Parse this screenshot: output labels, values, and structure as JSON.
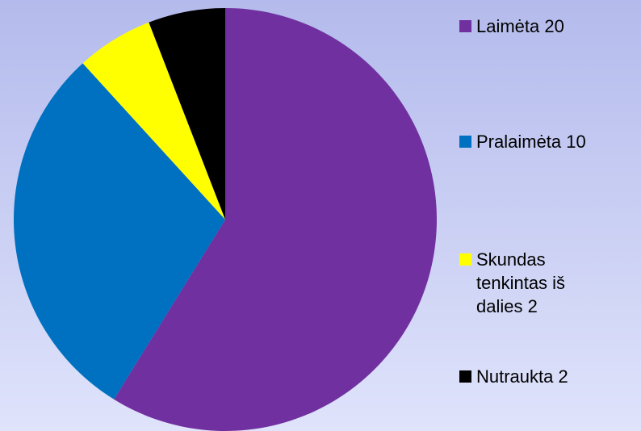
{
  "chart_data": {
    "type": "pie",
    "categories": [
      "Laimėta 20",
      "Pralaimėta 10",
      "Skundas tenkintas iš dalies 2",
      "Nutraukta 2"
    ],
    "values": [
      20,
      10,
      2,
      2
    ],
    "colors": [
      "#7030a0",
      "#0070c0",
      "#ffff00",
      "#000000"
    ],
    "legend": "right"
  }
}
